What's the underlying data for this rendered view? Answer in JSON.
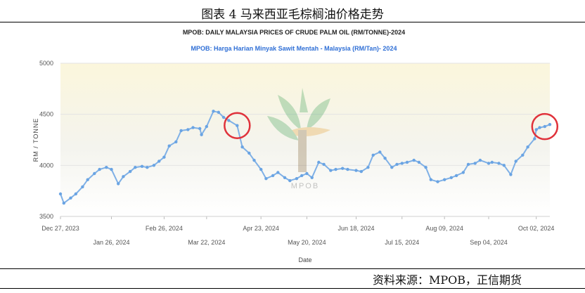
{
  "figure_title": "图表 4  马来西亚毛棕榈油价格走势",
  "source": "资料来源：MPOB，正信期货",
  "watermark": "MPOB",
  "colors": {
    "line": "#7fb0e6",
    "marker": "#6aa4e3",
    "highlight": "#e0323b",
    "title_blue": "#2f6fd6"
  },
  "chart_data": {
    "type": "line",
    "title": "MPOB: DAILY MALAYSIA PRICES OF CRUDE PALM OIL (RM/TONNE)-2024",
    "subtitle": "MPOB: Harga Harian Minyak Sawit Mentah - Malaysia (RM/Tan)- 2024",
    "xlabel": "Date",
    "ylabel": "RM / TONNE",
    "ylim": [
      3500,
      5000
    ],
    "yticks": [
      3500,
      4000,
      4500,
      5000
    ],
    "xlim": [
      "2023-12-27",
      "2024-10-10"
    ],
    "xticks_row1": [
      "Dec 27, 2023",
      "Feb 26, 2024",
      "Apr 23, 2024",
      "Jun 18, 2024",
      "Aug 09, 2024",
      "Oct 02, 2024"
    ],
    "xticks_row2": [
      "Jan 26, 2024",
      "Mar 22, 2024",
      "May 20, 2024",
      "Jul 15, 2024",
      "Sep 04, 2024"
    ],
    "grid": true,
    "highlight_dates": [
      "2024-04-09",
      "2024-10-07"
    ],
    "series": [
      {
        "x": [
          "2023-12-27",
          "2023-12-29",
          "2024-01-02",
          "2024-01-05",
          "2024-01-09",
          "2024-01-12",
          "2024-01-16",
          "2024-01-19",
          "2024-01-23",
          "2024-01-26",
          "2024-01-30",
          "2024-02-02",
          "2024-02-06",
          "2024-02-09",
          "2024-02-13",
          "2024-02-16",
          "2024-02-20",
          "2024-02-23",
          "2024-02-26",
          "2024-02-29",
          "2024-03-04",
          "2024-03-07",
          "2024-03-11",
          "2024-03-14",
          "2024-03-18",
          "2024-03-19",
          "2024-03-22",
          "2024-03-26",
          "2024-03-29",
          "2024-04-01",
          "2024-04-04",
          "2024-04-09",
          "2024-04-12",
          "2024-04-16",
          "2024-04-19",
          "2024-04-23",
          "2024-04-26",
          "2024-04-30",
          "2024-05-03",
          "2024-05-07",
          "2024-05-10",
          "2024-05-14",
          "2024-05-17",
          "2024-05-20",
          "2024-05-23",
          "2024-05-27",
          "2024-05-30",
          "2024-06-03",
          "2024-06-06",
          "2024-06-10",
          "2024-06-13",
          "2024-06-18",
          "2024-06-21",
          "2024-06-25",
          "2024-06-28",
          "2024-07-02",
          "2024-07-05",
          "2024-07-09",
          "2024-07-12",
          "2024-07-15",
          "2024-07-18",
          "2024-07-22",
          "2024-07-25",
          "2024-07-29",
          "2024-08-01",
          "2024-08-05",
          "2024-08-09",
          "2024-08-13",
          "2024-08-16",
          "2024-08-20",
          "2024-08-23",
          "2024-08-27",
          "2024-08-30",
          "2024-09-04",
          "2024-09-06",
          "2024-09-10",
          "2024-09-13",
          "2024-09-17",
          "2024-09-20",
          "2024-09-24",
          "2024-09-27",
          "2024-10-01",
          "2024-10-02",
          "2024-10-04",
          "2024-10-07",
          "2024-10-10"
        ],
        "values": [
          3720,
          3630,
          3680,
          3720,
          3790,
          3860,
          3920,
          3960,
          3980,
          3960,
          3820,
          3890,
          3940,
          3980,
          3990,
          3980,
          4000,
          4040,
          4080,
          4190,
          4230,
          4340,
          4350,
          4370,
          4360,
          4300,
          4380,
          4530,
          4520,
          4470,
          4440,
          4390,
          4180,
          4120,
          4050,
          3960,
          3870,
          3900,
          3930,
          3880,
          3850,
          3870,
          3900,
          3920,
          3880,
          4030,
          4010,
          3950,
          3960,
          3970,
          3960,
          3950,
          3940,
          3980,
          4100,
          4130,
          4070,
          3980,
          4010,
          4020,
          4030,
          4050,
          4030,
          3980,
          3860,
          3840,
          3860,
          3880,
          3900,
          3930,
          4010,
          4020,
          4050,
          4020,
          4030,
          4020,
          4000,
          3910,
          4040,
          4100,
          4180,
          4260,
          4350,
          4370,
          4380,
          4400
        ]
      }
    ]
  }
}
